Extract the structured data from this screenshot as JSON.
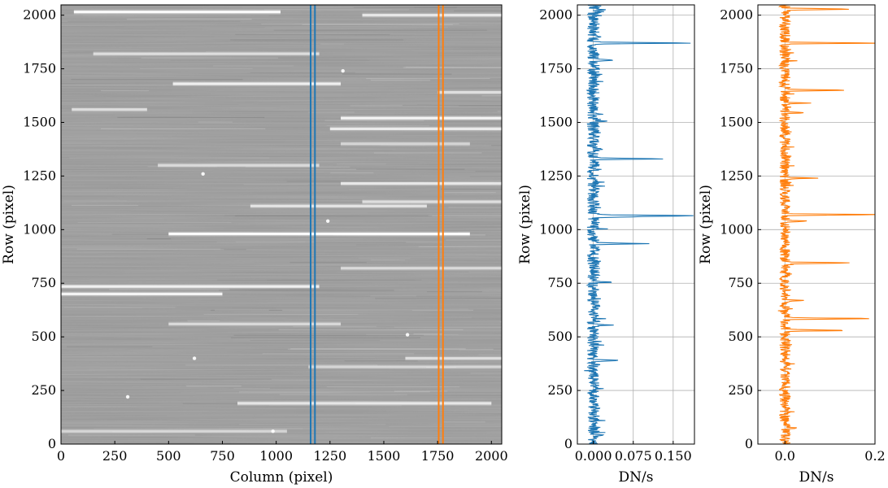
{
  "chart_data": [
    {
      "type": "heatmap",
      "xlabel": "Column (pixel)",
      "ylabel": "Row (pixel)",
      "xlim": [
        0,
        2048
      ],
      "ylim": [
        0,
        2048
      ],
      "xticks": [
        "0",
        "250",
        "500",
        "750",
        "1000",
        "1250",
        "1500",
        "1750",
        "2000"
      ],
      "yticks": [
        "0",
        "250",
        "500",
        "750",
        "1000",
        "1250",
        "1500",
        "1750",
        "2000"
      ],
      "grid": false,
      "colormap": "gray",
      "bright_streaks": [
        {
          "row": 2015,
          "x_start": 60,
          "x_end": 1020,
          "intensity": 0.95
        },
        {
          "row": 2000,
          "x_start": 1400,
          "x_end": 2048,
          "intensity": 0.7
        },
        {
          "row": 1820,
          "x_start": 150,
          "x_end": 1200,
          "intensity": 0.6
        },
        {
          "row": 1680,
          "x_start": 520,
          "x_end": 1300,
          "intensity": 0.8
        },
        {
          "row": 1640,
          "x_start": 1750,
          "x_end": 2048,
          "intensity": 0.6
        },
        {
          "row": 1560,
          "x_start": 50,
          "x_end": 400,
          "intensity": 0.6
        },
        {
          "row": 1520,
          "x_start": 1300,
          "x_end": 2048,
          "intensity": 0.85
        },
        {
          "row": 1470,
          "x_start": 1250,
          "x_end": 2048,
          "intensity": 0.75
        },
        {
          "row": 1400,
          "x_start": 1300,
          "x_end": 1900,
          "intensity": 0.5
        },
        {
          "row": 1300,
          "x_start": 450,
          "x_end": 1200,
          "intensity": 0.55
        },
        {
          "row": 1215,
          "x_start": 1300,
          "x_end": 2048,
          "intensity": 0.7
        },
        {
          "row": 1130,
          "x_start": 1400,
          "x_end": 2048,
          "intensity": 0.6
        },
        {
          "row": 1110,
          "x_start": 880,
          "x_end": 1700,
          "intensity": 0.65
        },
        {
          "row": 980,
          "x_start": 500,
          "x_end": 1900,
          "intensity": 0.95
        },
        {
          "row": 820,
          "x_start": 1300,
          "x_end": 2048,
          "intensity": 0.55
        },
        {
          "row": 735,
          "x_start": 0,
          "x_end": 1200,
          "intensity": 0.8
        },
        {
          "row": 700,
          "x_start": 0,
          "x_end": 750,
          "intensity": 0.85
        },
        {
          "row": 560,
          "x_start": 500,
          "x_end": 1300,
          "intensity": 0.55
        },
        {
          "row": 400,
          "x_start": 1600,
          "x_end": 2048,
          "intensity": 0.6
        },
        {
          "row": 360,
          "x_start": 1150,
          "x_end": 2048,
          "intensity": 0.5
        },
        {
          "row": 190,
          "x_start": 820,
          "x_end": 2000,
          "intensity": 0.7
        },
        {
          "row": 60,
          "x_start": 0,
          "x_end": 1050,
          "intensity": 0.5
        }
      ],
      "bright_spots": [
        {
          "x": 660,
          "y": 1260
        },
        {
          "x": 1310,
          "y": 1740
        },
        {
          "x": 1240,
          "y": 1040
        },
        {
          "x": 620,
          "y": 400
        },
        {
          "x": 310,
          "y": 220
        },
        {
          "x": 985,
          "y": 60
        },
        {
          "x": 1610,
          "y": 510
        }
      ],
      "vertical_markers": [
        {
          "x": 1160,
          "color": "#1f77b4"
        },
        {
          "x": 1180,
          "color": "#1f77b4"
        },
        {
          "x": 1755,
          "color": "#ff7f0e"
        },
        {
          "x": 1775,
          "color": "#ff7f0e"
        }
      ]
    },
    {
      "type": "line",
      "xlabel": "DN/s",
      "ylabel": "Row (pixel)",
      "xlim": [
        -0.03,
        0.19
      ],
      "ylim": [
        0,
        2048
      ],
      "xticks": [
        "0.000",
        "0.075",
        "0.150"
      ],
      "xtick_values": [
        0,
        0.075,
        0.15
      ],
      "yticks": [
        "0",
        "250",
        "500",
        "750",
        "1000",
        "1250",
        "1500",
        "1750",
        "2000"
      ],
      "grid": true,
      "color": "#1f77b4",
      "noise_center": 0.0,
      "noise_amplitude": 0.012,
      "peaks": [
        {
          "row": 2015,
          "value": 0.012
        },
        {
          "row": 1870,
          "value": 0.19
        },
        {
          "row": 1790,
          "value": 0.035
        },
        {
          "row": 1505,
          "value": 0.03
        },
        {
          "row": 1375,
          "value": 0.02
        },
        {
          "row": 1330,
          "value": 0.14
        },
        {
          "row": 1065,
          "value": 0.19
        },
        {
          "row": 1060,
          "value": 0.065
        },
        {
          "row": 935,
          "value": 0.095
        },
        {
          "row": 755,
          "value": 0.04
        },
        {
          "row": 555,
          "value": 0.03
        },
        {
          "row": 390,
          "value": 0.05
        },
        {
          "row": 40,
          "value": 0.02
        }
      ]
    },
    {
      "type": "line",
      "xlabel": "DN/s",
      "ylabel": "Row (pixel)",
      "xlim": [
        -0.06,
        0.2
      ],
      "ylim": [
        0,
        2048
      ],
      "xticks": [
        "0.0",
        "0.2"
      ],
      "xtick_values": [
        0,
        0.2
      ],
      "yticks": [
        "0",
        "250",
        "500",
        "750",
        "1000",
        "1250",
        "1500",
        "1750",
        "2000"
      ],
      "grid": true,
      "color": "#ff7f0e",
      "noise_center": 0.0,
      "noise_amplitude": 0.012,
      "peaks": [
        {
          "row": 2028,
          "value": 0.15
        },
        {
          "row": 1870,
          "value": 0.2
        },
        {
          "row": 1650,
          "value": 0.14
        },
        {
          "row": 1590,
          "value": 0.05
        },
        {
          "row": 1545,
          "value": 0.04
        },
        {
          "row": 1240,
          "value": 0.06
        },
        {
          "row": 1070,
          "value": 0.2
        },
        {
          "row": 1040,
          "value": 0.05
        },
        {
          "row": 845,
          "value": 0.15
        },
        {
          "row": 670,
          "value": 0.04
        },
        {
          "row": 585,
          "value": 0.2
        },
        {
          "row": 530,
          "value": 0.14
        },
        {
          "row": 75,
          "value": 0.035
        }
      ]
    }
  ]
}
